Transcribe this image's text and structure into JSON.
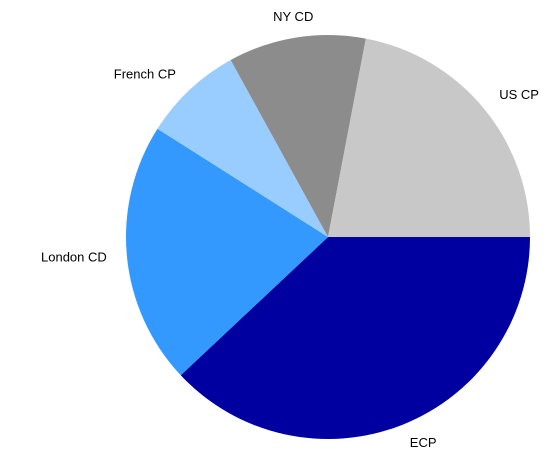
{
  "chart_data": {
    "type": "pie",
    "categories": [
      "ECP",
      "London CD",
      "French CP",
      "NY CD",
      "US CP"
    ],
    "values": [
      38,
      21,
      8,
      11,
      22
    ],
    "colors": [
      "#0000a0",
      "#3399ff",
      "#99ccff",
      "#8c8c8c",
      "#c8c8c8"
    ]
  }
}
